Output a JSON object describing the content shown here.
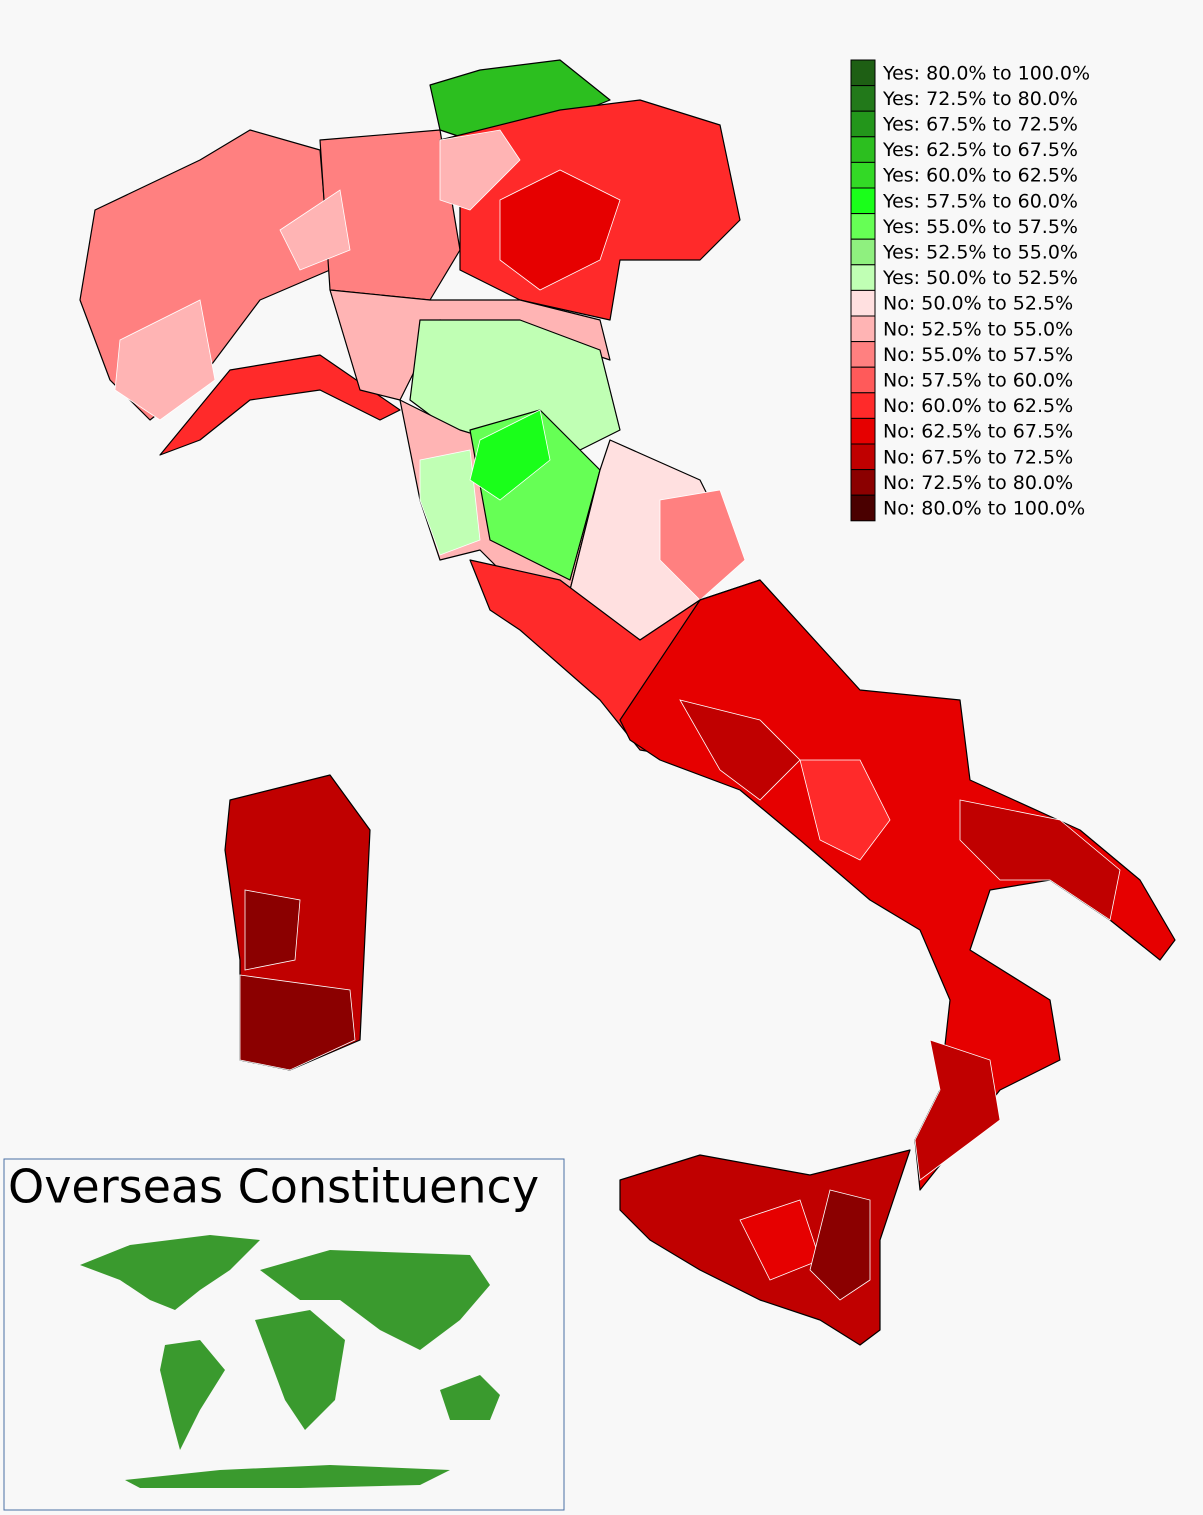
{
  "legend": {
    "items": [
      {
        "label": "Yes: 80.0% to 100.0%",
        "color": "#1e5f14"
      },
      {
        "label": "Yes: 72.5% to 80.0%",
        "color": "#22791a"
      },
      {
        "label": "Yes: 67.5% to 72.5%",
        "color": "#23961b"
      },
      {
        "label": "Yes: 62.5% to 67.5%",
        "color": "#2cbf1f"
      },
      {
        "label": "Yes: 60.0% to 62.5%",
        "color": "#33d926"
      },
      {
        "label": "Yes: 57.5% to 60.0%",
        "color": "#1aff1a"
      },
      {
        "label": "Yes: 55.0% to 57.5%",
        "color": "#66ff55"
      },
      {
        "label": "Yes: 52.5% to 55.0%",
        "color": "#8ff07f"
      },
      {
        "label": "Yes: 50.0% to 52.5%",
        "color": "#c0ffb4"
      },
      {
        "label": "No: 50.0% to 52.5%",
        "color": "#ffe0e0"
      },
      {
        "label": "No: 52.5% to 55.0%",
        "color": "#ffb4b4"
      },
      {
        "label": "No: 55.0% to 57.5%",
        "color": "#ff8080"
      },
      {
        "label": "No: 57.5% to 60.0%",
        "color": "#ff5a5a"
      },
      {
        "label": "No: 60.0% to 62.5%",
        "color": "#ff2a2a"
      },
      {
        "label": "No: 62.5% to 67.5%",
        "color": "#e60000"
      },
      {
        "label": "No: 67.5% to 72.5%",
        "color": "#c00000"
      },
      {
        "label": "No: 72.5% to 80.0%",
        "color": "#8b0000"
      },
      {
        "label": "No: 80.0% to 100.0%",
        "color": "#4a0000"
      }
    ]
  },
  "inset": {
    "title": "Overseas Constituency"
  }
}
